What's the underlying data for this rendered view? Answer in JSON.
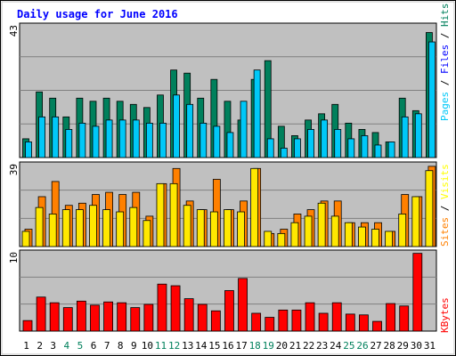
{
  "chart_data": [
    {
      "type": "bar",
      "title": "Daily usage for June 2016",
      "categories": [
        "1",
        "2",
        "3",
        "4",
        "5",
        "6",
        "7",
        "8",
        "9",
        "10",
        "11",
        "12",
        "13",
        "14",
        "15",
        "16",
        "17",
        "18",
        "19",
        "20",
        "21",
        "22",
        "23",
        "24",
        "25",
        "26",
        "27",
        "28",
        "29",
        "30",
        "31"
      ],
      "weekend_categories": [
        "4",
        "5",
        "11",
        "12",
        "18",
        "19",
        "25",
        "26"
      ],
      "ymax": 43,
      "ylabel_parts": [
        "Pages",
        "Files",
        "Hits"
      ],
      "series": [
        {
          "name": "Hits",
          "color": "#00805c",
          "values": [
            6,
            21,
            19,
            13,
            19,
            18,
            19,
            18,
            17,
            16,
            20,
            28,
            27,
            19,
            25,
            18,
            12,
            25,
            31,
            10,
            7,
            12,
            14,
            17,
            11,
            9,
            8,
            5,
            19,
            15,
            40
          ]
        },
        {
          "name": "Files",
          "color": "#00c8f8",
          "values": [
            5,
            13,
            13,
            9,
            11,
            10,
            12,
            12,
            12,
            11,
            11,
            20,
            17,
            11,
            10,
            8,
            18,
            28,
            6,
            3,
            6,
            9,
            12,
            9,
            6,
            7,
            4,
            5,
            13,
            14,
            37
          ]
        },
        {
          "name": "Pages",
          "color": "#00c8f8",
          "values": [
            0,
            0,
            0,
            0,
            0,
            0,
            0,
            0,
            0,
            0,
            0,
            0,
            0,
            0,
            0,
            0,
            0,
            0,
            0,
            0,
            0,
            0,
            0,
            0,
            0,
            0,
            0,
            0,
            0,
            0,
            0
          ]
        }
      ]
    },
    {
      "type": "bar",
      "ymax": 39,
      "ylabel_parts": [
        "Sites",
        "Visits"
      ],
      "series": [
        {
          "name": "Visits",
          "color": "#ff8000",
          "values": [
            8,
            23,
            30,
            19,
            20,
            24,
            25,
            24,
            25,
            14,
            29,
            36,
            21,
            17,
            31,
            17,
            21,
            36,
            6,
            8,
            15,
            17,
            21,
            21,
            11,
            11,
            11,
            7,
            24,
            23,
            37
          ]
        },
        {
          "name": "Sites",
          "color": "#ffe800",
          "values": [
            7,
            18,
            15,
            17,
            17,
            19,
            17,
            16,
            18,
            12,
            29,
            29,
            19,
            17,
            16,
            17,
            16,
            36,
            7,
            6,
            11,
            14,
            20,
            14,
            11,
            9,
            8,
            7,
            15,
            23,
            35
          ]
        }
      ]
    },
    {
      "type": "bar",
      "ymax": 10,
      "ylabel_parts": [
        "KBytes"
      ],
      "series": [
        {
          "name": "KBytes",
          "color": "#ff0000",
          "values": [
            1.3,
            4.2,
            3.5,
            2.9,
            3.7,
            3.2,
            3.6,
            3.5,
            2.9,
            3.3,
            5.8,
            5.6,
            4.0,
            3.3,
            2.5,
            5.0,
            6.5,
            2.2,
            1.7,
            2.6,
            2.6,
            3.5,
            2.2,
            3.5,
            2.1,
            2.0,
            1.2,
            3.4,
            3.1,
            9.6,
            0
          ]
        }
      ]
    }
  ],
  "colors": {
    "title": "#0000ff",
    "panel_bg": "#c0c0c0",
    "grid": "#808080",
    "axis_label": "#000000",
    "weekend_label": "#00805c",
    "slash": "#000000",
    "hits": "#00805c",
    "files": "#0000ff",
    "pages": "#00c8f8",
    "visits": "#ffff00",
    "sites": "#ff8000",
    "kbytes": "#ff0000"
  }
}
